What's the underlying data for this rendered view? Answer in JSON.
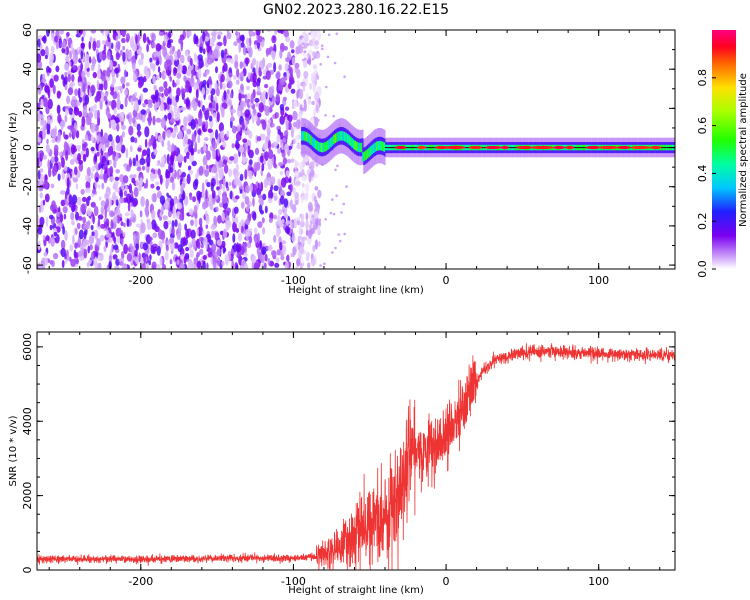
{
  "title": "GN02.2023.280.16.22.E15",
  "colors": {
    "spectrogram_low": "#7a00f0",
    "snr_line": "#ee3333",
    "frame": "#000000"
  },
  "chart_data": [
    {
      "type": "heatmap",
      "name": "spectrogram",
      "xlabel": "Height of straight line (km)",
      "ylabel": "Frequency (Hz)",
      "xlim": [
        -268,
        150
      ],
      "ylim": [
        -62,
        60
      ],
      "xticks": [
        -200,
        -100,
        0,
        100
      ],
      "yticks": [
        -60,
        -40,
        -20,
        0,
        20,
        40,
        60
      ],
      "colormap": "rainbow",
      "colorbar": {
        "label": "Normalized spectral amplitude",
        "ticks": [
          0.0,
          0.2,
          0.4,
          0.6,
          0.8
        ],
        "range": [
          0,
          1
        ]
      },
      "regions": [
        {
          "from": -268,
          "to": -95,
          "description": "broadband noise",
          "amplitude": 0.12
        },
        {
          "from": -95,
          "to": -40,
          "description": "signal emerging",
          "amplitude": 0.4
        },
        {
          "from": -40,
          "to": 150,
          "description": "narrow tone near 0 Hz",
          "amplitude": 0.85
        }
      ],
      "tone_frequency_hz": 0
    },
    {
      "type": "line",
      "name": "snr",
      "xlabel": "Height of straight line (km)",
      "ylabel": "SNR (10 * v/v)",
      "xlim": [
        -268,
        150
      ],
      "ylim": [
        0,
        6400
      ],
      "xticks": [
        -200,
        -100,
        0,
        100
      ],
      "yticks": [
        0,
        2000,
        4000,
        6000
      ],
      "grid": false,
      "x": [
        -268,
        -200,
        -150,
        -100,
        -85,
        -75,
        -65,
        -55,
        -45,
        -35,
        -28,
        -25,
        -15,
        -5,
        5,
        15,
        25,
        35,
        50,
        75,
        100,
        125,
        150
      ],
      "y": [
        300,
        290,
        310,
        320,
        360,
        500,
        800,
        1100,
        1300,
        1700,
        2400,
        3600,
        3100,
        3400,
        3900,
        4700,
        5400,
        5700,
        5850,
        5880,
        5820,
        5790,
        5780
      ]
    }
  ]
}
